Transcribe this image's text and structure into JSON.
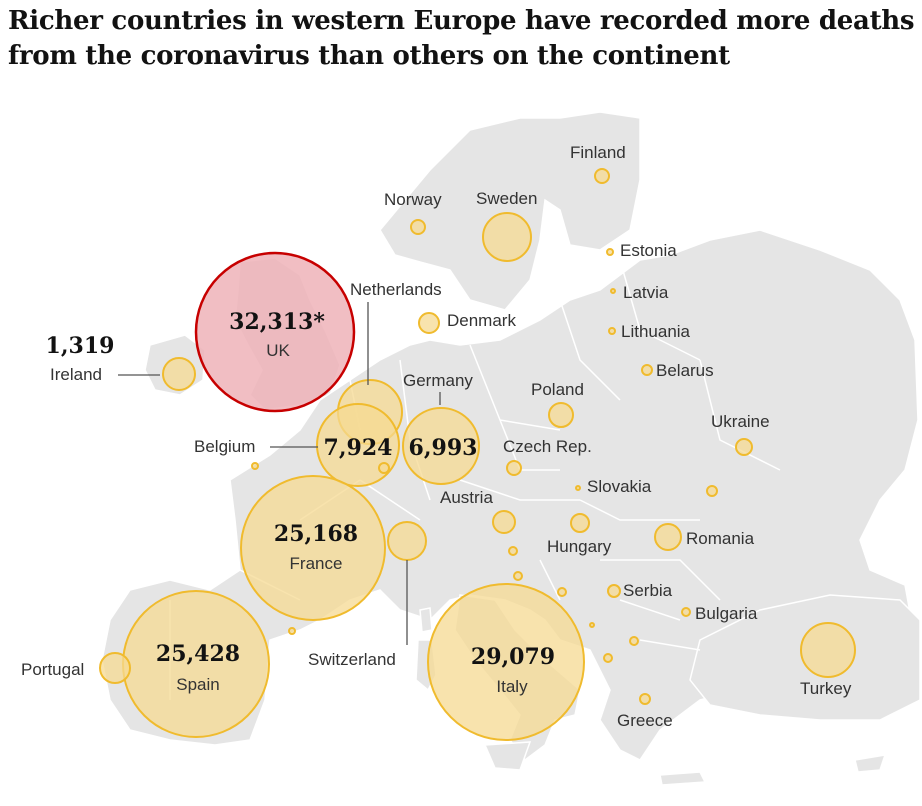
{
  "title_lines": [
    "Richer countries in western Europe have recorded more deaths",
    "from the coronavirus than others on the continent"
  ],
  "colors": {
    "land": "#e5e5e5",
    "border": "#ffffff",
    "bubble_fill": "#f5d992",
    "bubble_stroke": "#f0bb2e",
    "uk_fill": "#efb3b8",
    "uk_stroke": "#c70000",
    "leader": "#555555"
  },
  "labelled_values": [
    {
      "country": "UK",
      "value": "32,313*"
    },
    {
      "country": "Italy",
      "value": "29,079"
    },
    {
      "country": "Spain",
      "value": "25,428"
    },
    {
      "country": "France",
      "value": "25,168"
    },
    {
      "country": "Belgium",
      "value": "7,924"
    },
    {
      "country": "Germany",
      "value": "6,993"
    },
    {
      "country": "Ireland",
      "value": "1,319"
    }
  ],
  "country_labels": {
    "finland": "Finland",
    "norway": "Norway",
    "sweden": "Sweden",
    "estonia": "Estonia",
    "latvia": "Latvia",
    "lithuania": "Lithuania",
    "netherlands": "Netherlands",
    "denmark": "Denmark",
    "belarus": "Belarus",
    "germany": "Germany",
    "poland": "Poland",
    "ukraine": "Ukraine",
    "belgium": "Belgium",
    "czech": "Czech Rep.",
    "slovakia": "Slovakia",
    "austria": "Austria",
    "hungary": "Hungary",
    "romania": "Romania",
    "serbia": "Serbia",
    "bulgaria": "Bulgaria",
    "switzerland": "Switzerland",
    "portugal": "Portugal",
    "turkey": "Turkey",
    "greece": "Greece",
    "uk": "UK",
    "france": "France",
    "spain": "Spain",
    "italy": "Italy",
    "ireland": "Ireland"
  }
}
